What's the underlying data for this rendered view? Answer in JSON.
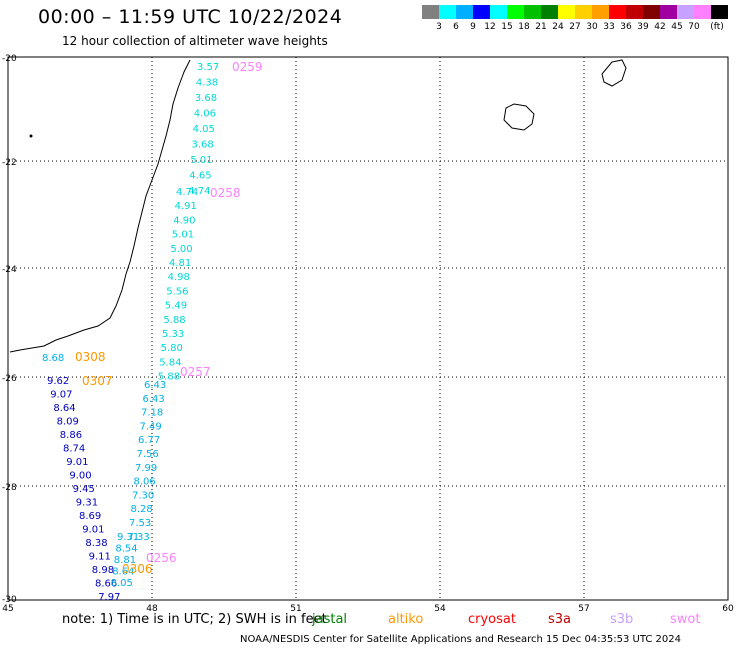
{
  "header": {
    "title": "00:00 – 11:59 UTC 10/22/2024",
    "subtitle": "12 hour collection of altimeter wave heights"
  },
  "legend": {
    "colors": [
      "#808080",
      "#00ffff",
      "#00b0ff",
      "#0000ff",
      "#00ffff",
      "#00ff00",
      "#00c000",
      "#008000",
      "#ffff00",
      "#ffd000",
      "#ffa000",
      "#ff0000",
      "#c00000",
      "#800000",
      "#a000a0",
      "#c8a0ff",
      "#ff80ff",
      "#000000"
    ],
    "labels": [
      "3",
      "6",
      "9",
      "12",
      "15",
      "18",
      "21",
      "24",
      "27",
      "30",
      "33",
      "36",
      "39",
      "42",
      "45",
      "70",
      "(ft)"
    ]
  },
  "axes": {
    "lon_labels": [
      "45",
      "48",
      "51",
      "54",
      "57",
      "60"
    ],
    "lat_labels": [
      "-20",
      "-22",
      "-24",
      "-26",
      "-28",
      "-30"
    ]
  },
  "tracks": [
    {
      "pass": "0259",
      "sat": "swot",
      "color": "#00d8d8",
      "labels": [
        "3.57",
        "4.38",
        "3.68",
        "4.06",
        "4.05",
        "3.68",
        "5.01",
        "4.65",
        "4.74"
      ]
    },
    {
      "pass": "0258",
      "sat": "swot",
      "color": "#00d8d8",
      "labels": [
        "4.74",
        "4.91",
        "4.90",
        "5.01",
        "5.00",
        "4.81",
        "4.98",
        "5.56",
        "5.49",
        "5.88",
        "5.33",
        "5.80",
        "5.84",
        "5.88"
      ]
    },
    {
      "pass": "0257",
      "sat": "swot",
      "color": "#00b0e8",
      "labels": [
        "6.43",
        "6.43",
        "7.18",
        "7.49",
        "6.77",
        "7.56",
        "7.99",
        "8.06",
        "7.30",
        "8.28",
        "7.53",
        "7.33"
      ]
    },
    {
      "pass": "0307",
      "sat": "altiko",
      "color": "#0000c0",
      "labels": [
        "9.62",
        "9.07",
        "8.64",
        "8.09",
        "8.86",
        "8.74",
        "9.01",
        "9.00",
        "9.45",
        "9.31",
        "8.69",
        "9.01",
        "8.38",
        "9.11",
        "8.98",
        "8.66",
        "7.97"
      ]
    },
    {
      "pass": "0256",
      "sat": "swot",
      "color": "#00b0e8",
      "labels": [
        "9.31",
        "8.54",
        "8.81",
        "8.64",
        "8.05"
      ]
    }
  ],
  "extra_labels": {
    "coast_value": "8.68"
  },
  "pass_tags": [
    {
      "text": "0259",
      "color": "#ff80ff"
    },
    {
      "text": "0258",
      "color": "#ff80ff"
    },
    {
      "text": "0257",
      "color": "#ff80ff"
    },
    {
      "text": "0308",
      "color": "#ff9800"
    },
    {
      "text": "0307",
      "color": "#ff9800"
    },
    {
      "text": "0306",
      "color": "#ff9800"
    },
    {
      "text": "0256",
      "color": "#ff80ff"
    }
  ],
  "note": "note: 1) Time is in UTC; 2) SWH is in feet",
  "satellites": [
    {
      "name": "jastal",
      "color": "#008000"
    },
    {
      "name": "altiko",
      "color": "#ff9800"
    },
    {
      "name": "cryosat",
      "color": "#ff0000"
    },
    {
      "name": "s3a",
      "color": "#c00000"
    },
    {
      "name": "s3b",
      "color": "#c8a0ff"
    },
    {
      "name": "swot",
      "color": "#ff80ff"
    }
  ],
  "footer": "NOAA/NESDIS Center for Satellite Applications and Research    15 Dec 04:35:53 UTC 2024"
}
